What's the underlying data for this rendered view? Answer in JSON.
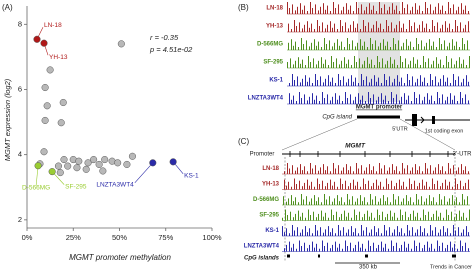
{
  "chart_data": {
    "type": "scatter",
    "panel_label": "(A)",
    "y_label": "MGMT expression (log2)",
    "x_label": "MGMT promoter methylation",
    "annotations": [
      "r = -0.35",
      "p = 4.51e-02"
    ],
    "xlim": [
      0,
      100
    ],
    "ylim": [
      1.75,
      8.5
    ],
    "xticks": [
      {
        "value": 0,
        "label": "0%"
      },
      {
        "value": 25,
        "label": "25%"
      },
      {
        "value": 50,
        "label": "50%"
      },
      {
        "value": 75,
        "label": "75%"
      },
      {
        "value": 100,
        "label": "100%"
      }
    ],
    "yticks": [
      2,
      4,
      6,
      8
    ],
    "series": [
      {
        "color": "#b8b8b8",
        "x": [
          51,
          12.5,
          9.8,
          19.6,
          10.9,
          18.5,
          9.8,
          9.2,
          7,
          20,
          25,
          28,
          33,
          36,
          39,
          42,
          46,
          49,
          54,
          57,
          17,
          22,
          27,
          32,
          41,
          18
        ],
        "values": [
          7.4,
          6.6,
          6.06,
          5.6,
          5.5,
          4.98,
          5.05,
          4.09,
          3.72,
          3.85,
          3.85,
          3.8,
          3.75,
          3.85,
          3.7,
          3.85,
          3.8,
          3.75,
          3.7,
          3.95,
          3.65,
          3.65,
          3.6,
          3.55,
          3.5,
          3.45
        ]
      },
      {
        "color": "#b01818",
        "x": [
          5.4,
          9.2
        ],
        "values": [
          7.54,
          7.42
        ],
        "labels": [
          "LN-18",
          "YH-13"
        ]
      },
      {
        "color": "#9acd32",
        "x": [
          6,
          13.6
        ],
        "values": [
          3.66,
          3.48
        ],
        "labels": [
          "D-566MG",
          "SF-295"
        ]
      },
      {
        "color": "#2a2aa8",
        "x": [
          68,
          79
        ],
        "values": [
          3.75,
          3.78
        ],
        "labels": [
          "LNZTA3WT4",
          "KS-1"
        ]
      }
    ]
  },
  "panel_b": {
    "label": "(B)",
    "tracks": [
      {
        "label": "LN-18",
        "color": "#a52a2a"
      },
      {
        "label": "YH-13",
        "color": "#a52a2a"
      },
      {
        "label": "D-566MG",
        "color": "#4f8f1f"
      },
      {
        "label": "SF-295",
        "color": "#4f8f1f"
      },
      {
        "label": "KS-1",
        "color": "#2a2aa8"
      },
      {
        "label": "LNZTA3WT4",
        "color": "#2a2aa8"
      }
    ],
    "cpg_label": "CpG island",
    "promoter_label": "MGMT promoter",
    "utr_label": "5'UTR",
    "exon_label": "1st coding exon"
  },
  "panel_c": {
    "label": "(C)",
    "promoter_label": "Promoter",
    "gene_label": "MGMT",
    "utr3_label": "3'-UTR",
    "tracks": [
      {
        "label": "LN-18",
        "color": "#a52a2a"
      },
      {
        "label": "YH-13",
        "color": "#a52a2a"
      },
      {
        "label": "D-566MG",
        "color": "#4f8f1f"
      },
      {
        "label": "SF-295",
        "color": "#4f8f1f"
      },
      {
        "label": "KS-1",
        "color": "#2a2aa8"
      },
      {
        "label": "LNZTA3WT4",
        "color": "#2a2aa8"
      }
    ],
    "cpg_label": "CpG islands",
    "scale_label": "350 kb"
  },
  "footer": "Trends in Cancer"
}
